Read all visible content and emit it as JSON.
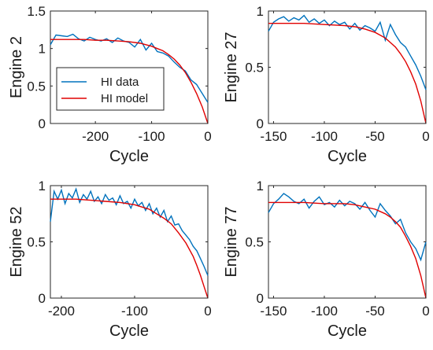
{
  "colors": {
    "hi_data": "#0072BD",
    "hi_model": "#E00000",
    "axes": "#262626"
  },
  "chart_data": [
    {
      "type": "line",
      "ylabel": "Engine 2",
      "xlabel": "Cycle",
      "xlim": [
        -280,
        0
      ],
      "ylim": [
        0,
        1.5
      ],
      "xticks": [
        -200,
        -100,
        0
      ],
      "yticks": [
        0,
        0.5,
        1,
        1.5
      ],
      "xtick_labels": [
        "-200",
        "-100",
        "0"
      ],
      "ytick_labels": [
        "0",
        "0.5",
        "1",
        "1.5"
      ],
      "legend": {
        "placement": "center-left",
        "entries": [
          "HI data",
          "HI model"
        ]
      },
      "series": [
        {
          "name": "HI data",
          "x": [
            -280,
            -270,
            -260,
            -250,
            -240,
            -230,
            -220,
            -210,
            -200,
            -190,
            -180,
            -170,
            -160,
            -150,
            -140,
            -130,
            -120,
            -110,
            -100,
            -90,
            -80,
            -70,
            -60,
            -50,
            -40,
            -30,
            -20,
            -10,
            0
          ],
          "y": [
            1.05,
            1.18,
            1.17,
            1.16,
            1.19,
            1.13,
            1.1,
            1.15,
            1.12,
            1.1,
            1.13,
            1.08,
            1.14,
            1.1,
            1.08,
            1.02,
            1.12,
            0.98,
            1.07,
            0.96,
            0.94,
            0.9,
            0.82,
            0.75,
            0.7,
            0.58,
            0.52,
            0.4,
            0.28
          ]
        },
        {
          "name": "HI model",
          "x": [
            -280,
            -260,
            -240,
            -220,
            -200,
            -180,
            -160,
            -140,
            -120,
            -100,
            -90,
            -80,
            -70,
            -60,
            -50,
            -40,
            -30,
            -20,
            -10,
            0
          ],
          "y": [
            1.12,
            1.12,
            1.12,
            1.12,
            1.11,
            1.11,
            1.1,
            1.09,
            1.07,
            1.03,
            1.0,
            0.97,
            0.92,
            0.86,
            0.78,
            0.68,
            0.55,
            0.4,
            0.22,
            0.0
          ]
        }
      ]
    },
    {
      "type": "line",
      "ylabel": "Engine 27",
      "xlabel": "Cycle",
      "xlim": [
        -155,
        0
      ],
      "ylim": [
        0,
        1
      ],
      "xticks": [
        -150,
        -100,
        -50,
        0
      ],
      "yticks": [
        0,
        0.5,
        1
      ],
      "xtick_labels": [
        "-150",
        "-100",
        "-50",
        "0"
      ],
      "ytick_labels": [
        "0",
        "0.5",
        "1"
      ],
      "series": [
        {
          "name": "HI data",
          "x": [
            -155,
            -150,
            -145,
            -140,
            -135,
            -130,
            -125,
            -120,
            -115,
            -110,
            -105,
            -100,
            -95,
            -90,
            -85,
            -80,
            -75,
            -70,
            -65,
            -60,
            -55,
            -50,
            -45,
            -40,
            -35,
            -30,
            -25,
            -20,
            -15,
            -10,
            -5,
            0
          ],
          "y": [
            0.82,
            0.9,
            0.93,
            0.95,
            0.91,
            0.94,
            0.92,
            0.96,
            0.9,
            0.93,
            0.89,
            0.92,
            0.87,
            0.91,
            0.88,
            0.9,
            0.84,
            0.89,
            0.83,
            0.87,
            0.85,
            0.82,
            0.9,
            0.74,
            0.88,
            0.79,
            0.72,
            0.68,
            0.6,
            0.52,
            0.42,
            0.3
          ]
        },
        {
          "name": "HI model",
          "x": [
            -155,
            -140,
            -120,
            -100,
            -80,
            -70,
            -60,
            -50,
            -40,
            -35,
            -30,
            -25,
            -20,
            -15,
            -10,
            -5,
            0
          ],
          "y": [
            0.89,
            0.89,
            0.89,
            0.88,
            0.87,
            0.86,
            0.84,
            0.81,
            0.76,
            0.72,
            0.68,
            0.62,
            0.55,
            0.46,
            0.35,
            0.2,
            0.0
          ]
        }
      ]
    },
    {
      "type": "line",
      "ylabel": "Engine 52",
      "xlabel": "Cycle",
      "xlim": [
        -215,
        0
      ],
      "ylim": [
        0,
        1
      ],
      "xticks": [
        -200,
        -100,
        0
      ],
      "yticks": [
        0,
        0.5,
        1
      ],
      "xtick_labels": [
        "-200",
        "-100",
        "0"
      ],
      "ytick_labels": [
        "0",
        "0.5",
        "1"
      ],
      "series": [
        {
          "name": "HI data",
          "x": [
            -215,
            -210,
            -205,
            -200,
            -195,
            -190,
            -185,
            -180,
            -175,
            -170,
            -165,
            -160,
            -155,
            -150,
            -145,
            -140,
            -135,
            -130,
            -125,
            -120,
            -115,
            -110,
            -105,
            -100,
            -95,
            -90,
            -85,
            -80,
            -75,
            -70,
            -65,
            -60,
            -55,
            -50,
            -45,
            -40,
            -35,
            -30,
            -25,
            -20,
            -15,
            -10,
            -5,
            0
          ],
          "y": [
            0.68,
            0.95,
            0.88,
            0.96,
            0.84,
            0.93,
            0.89,
            0.97,
            0.85,
            0.92,
            0.88,
            0.95,
            0.86,
            0.9,
            0.84,
            0.92,
            0.87,
            0.89,
            0.83,
            0.91,
            0.84,
            0.86,
            0.8,
            0.88,
            0.82,
            0.85,
            0.78,
            0.84,
            0.75,
            0.8,
            0.72,
            0.78,
            0.68,
            0.73,
            0.65,
            0.66,
            0.6,
            0.56,
            0.52,
            0.46,
            0.42,
            0.35,
            0.28,
            0.2
          ]
        },
        {
          "name": "HI model",
          "x": [
            -215,
            -200,
            -180,
            -160,
            -140,
            -120,
            -100,
            -90,
            -80,
            -70,
            -60,
            -50,
            -40,
            -30,
            -20,
            -15,
            -10,
            -5,
            0
          ],
          "y": [
            0.88,
            0.88,
            0.88,
            0.87,
            0.86,
            0.85,
            0.83,
            0.81,
            0.79,
            0.75,
            0.71,
            0.66,
            0.58,
            0.49,
            0.37,
            0.29,
            0.2,
            0.1,
            0.0
          ]
        }
      ]
    },
    {
      "type": "line",
      "ylabel": "Engine 77",
      "xlabel": "Cycle",
      "xlim": [
        -155,
        0
      ],
      "ylim": [
        0,
        1
      ],
      "xticks": [
        -150,
        -100,
        -50,
        0
      ],
      "yticks": [
        0,
        0.5,
        1
      ],
      "xtick_labels": [
        "-150",
        "-100",
        "-50",
        "0"
      ],
      "ytick_labels": [
        "0",
        "0.5",
        "1"
      ],
      "series": [
        {
          "name": "HI data",
          "x": [
            -155,
            -150,
            -145,
            -140,
            -135,
            -130,
            -125,
            -120,
            -115,
            -110,
            -105,
            -100,
            -95,
            -90,
            -85,
            -80,
            -75,
            -70,
            -65,
            -60,
            -55,
            -50,
            -45,
            -40,
            -35,
            -30,
            -25,
            -20,
            -15,
            -10,
            -5,
            0
          ],
          "y": [
            0.76,
            0.84,
            0.88,
            0.93,
            0.9,
            0.86,
            0.84,
            0.88,
            0.8,
            0.86,
            0.9,
            0.83,
            0.85,
            0.81,
            0.87,
            0.82,
            0.86,
            0.84,
            0.79,
            0.85,
            0.78,
            0.72,
            0.84,
            0.78,
            0.73,
            0.66,
            0.7,
            0.58,
            0.5,
            0.44,
            0.34,
            0.5
          ]
        },
        {
          "name": "HI model",
          "x": [
            -155,
            -140,
            -120,
            -100,
            -80,
            -70,
            -60,
            -50,
            -40,
            -35,
            -30,
            -25,
            -20,
            -15,
            -10,
            -5,
            0
          ],
          "y": [
            0.85,
            0.85,
            0.85,
            0.84,
            0.84,
            0.83,
            0.81,
            0.79,
            0.75,
            0.72,
            0.68,
            0.63,
            0.55,
            0.46,
            0.35,
            0.2,
            0.0
          ]
        }
      ]
    }
  ]
}
